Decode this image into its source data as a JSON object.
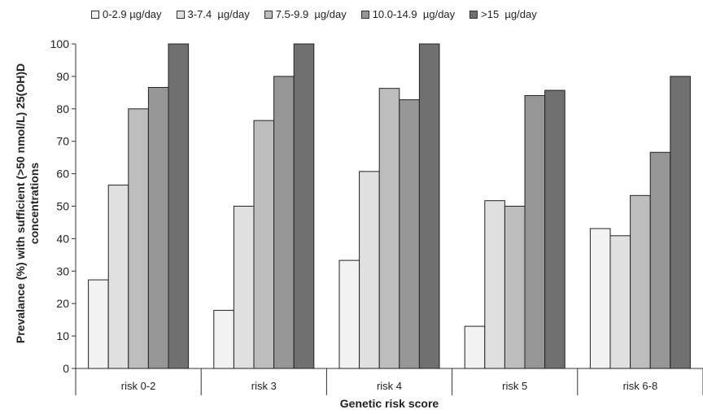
{
  "chart_data": {
    "type": "bar",
    "categories": [
      "risk 0-2",
      "risk 3",
      "risk 4",
      "risk 5",
      "risk 6-8"
    ],
    "series": [
      {
        "name": "0-2.9 µg/day",
        "color": "#f2f2f2",
        "values": [
          27.3,
          17.9,
          33.3,
          13.0,
          43.1
        ]
      },
      {
        "name": "3-7.4  µg/day",
        "color": "#e0e0e0",
        "values": [
          56.5,
          50.0,
          60.7,
          51.7,
          40.9
        ]
      },
      {
        "name": "7.5-9.9  µg/day",
        "color": "#bdbdbd",
        "values": [
          80.0,
          76.4,
          86.3,
          50.0,
          53.3
        ]
      },
      {
        "name": "10.0-14.9  µg/day",
        "color": "#969696",
        "values": [
          86.6,
          90.0,
          82.8,
          84.1,
          66.6
        ]
      },
      {
        "name": ">15  µg/day",
        "color": "#707070",
        "values": [
          100,
          100,
          100,
          85.7,
          90.0
        ]
      }
    ],
    "ylabel": "Prevalance (%) with  sufficient (>50 nmol/L) 25(OH)D concentrations",
    "ylabel_lines": [
      "Prevalance (%) with  sufficient (>50 nmol/L) 25(OH)D",
      "concentrations"
    ],
    "xlabel": "Genetic risk score",
    "ylim": [
      0,
      100
    ],
    "yticks": [
      0,
      10,
      20,
      30,
      40,
      50,
      60,
      70,
      80,
      90,
      100
    ],
    "grid": false,
    "legend_position": "top"
  }
}
